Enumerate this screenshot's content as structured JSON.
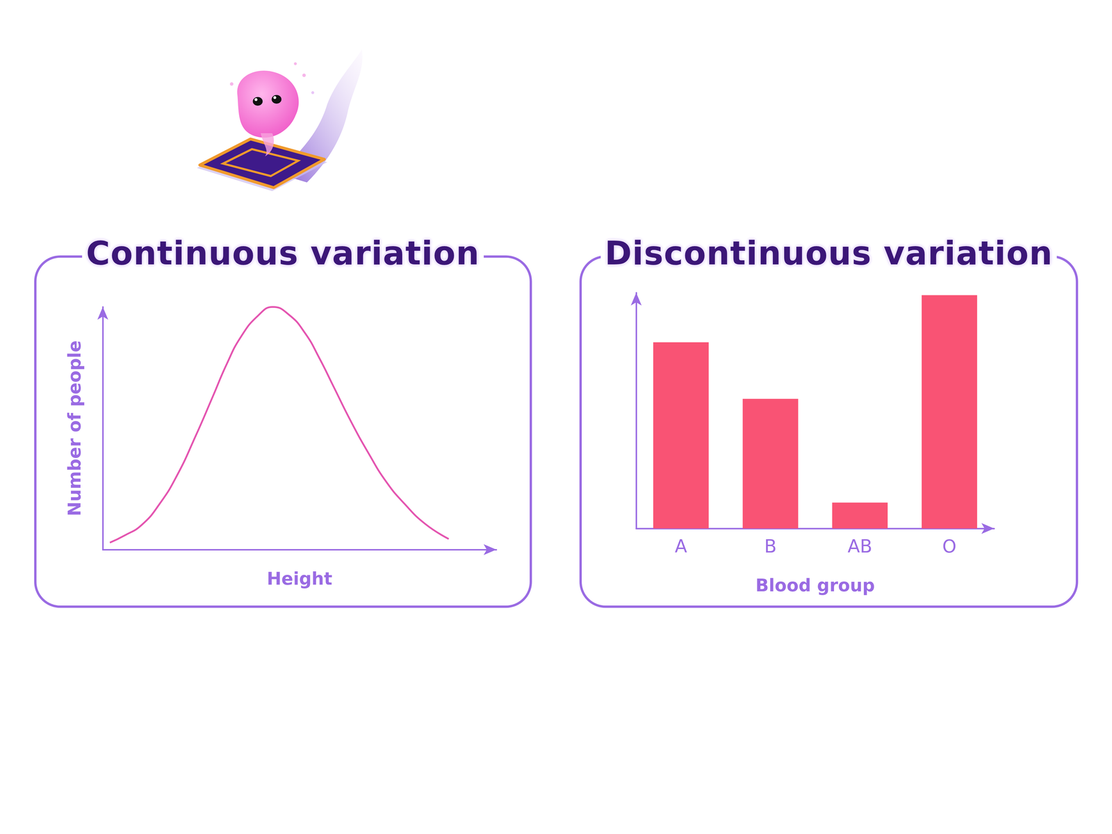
{
  "chart_data": [
    {
      "type": "line",
      "title": "Continuous variation",
      "x_label": "Height",
      "y_label": "Number of people",
      "x": [
        1.8,
        5.5,
        9.9,
        14.5,
        18.9,
        23.5,
        27.9,
        31.5,
        35.1,
        39.5,
        43.2,
        47.3,
        51.4,
        55.0,
        58.6,
        63.0,
        67.6,
        72.0,
        76.6,
        82.0,
        87.9
      ],
      "values": [
        2.9,
        5.8,
        10.2,
        19.0,
        30.7,
        46.5,
        62.9,
        76.5,
        87.7,
        96.5,
        100,
        96.8,
        89.2,
        79.0,
        67.3,
        53.0,
        39.5,
        28.0,
        19.0,
        10.5,
        4.4
      ],
      "xlim": [
        0,
        100
      ],
      "ylim": [
        0,
        100
      ],
      "tick_labels": false,
      "color": "#e455b0"
    },
    {
      "type": "bar",
      "title": "Discontinuous variation",
      "x_label": "Blood group",
      "categories": [
        "A",
        "B",
        "AB",
        "O"
      ],
      "values": [
        79,
        55,
        11,
        99
      ],
      "ylim": [
        0,
        100
      ],
      "tick_labels": "x",
      "color": "#f95374"
    }
  ]
}
